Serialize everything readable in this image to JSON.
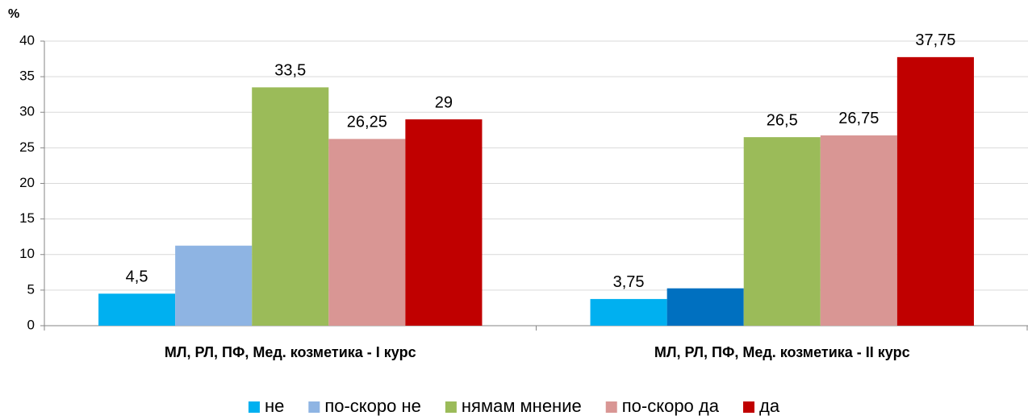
{
  "chart_data": {
    "type": "bar",
    "y_unit": "%",
    "categories": [
      "МЛ, РЛ, ПФ, Мед. козметика - I курс",
      "МЛ, РЛ, ПФ, Мед. козметика - II курс"
    ],
    "series": [
      {
        "name": "не",
        "color": "#00b0f0",
        "values": [
          4.5,
          3.75
        ],
        "value_labels": [
          "4,5",
          "3,75"
        ]
      },
      {
        "name": "по-скоро не",
        "color": "#8eb4e3",
        "point_colors": [
          "#8eb4e3",
          "#0070c0"
        ],
        "values": [
          11.25,
          5.25
        ]
      },
      {
        "name": "нямам мнение",
        "color": "#9bbb59",
        "values": [
          33.5,
          26.5
        ],
        "value_labels": [
          "33,5",
          "26,5"
        ]
      },
      {
        "name": "по-скоро да",
        "color": "#d99694",
        "values": [
          26.25,
          26.75
        ],
        "value_labels": [
          "26,25",
          "26,75"
        ]
      },
      {
        "name": "да",
        "color": "#c00000",
        "values": [
          29,
          37.75
        ],
        "value_labels": [
          "29",
          "37,75"
        ]
      }
    ],
    "ylim": [
      0,
      40
    ],
    "yticks": [
      0,
      5,
      10,
      15,
      20,
      25,
      30,
      35,
      40
    ],
    "grid": true,
    "legend": "bottom"
  }
}
